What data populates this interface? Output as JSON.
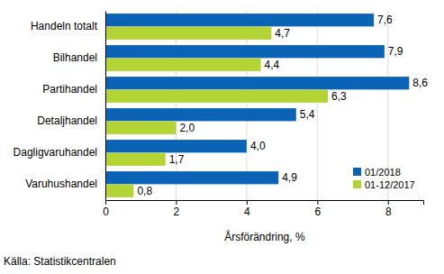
{
  "chart_data": {
    "type": "bar",
    "orientation": "horizontal",
    "categories": [
      "Handeln totalt",
      "Bilhandel",
      "Partihandel",
      "Detaljhandel",
      "Dagligvaruhandel",
      "Varuhushandel"
    ],
    "series": [
      {
        "name": "01/2018",
        "color": "#0b63b5",
        "values": [
          7.6,
          7.9,
          8.6,
          5.4,
          4.0,
          4.9
        ],
        "value_labels": [
          "7,6",
          "7,9",
          "8,6",
          "5,4",
          "4,0",
          "4,9"
        ]
      },
      {
        "name": "01-12/2017",
        "color": "#b4d335",
        "values": [
          4.7,
          4.4,
          6.3,
          2.0,
          1.7,
          0.8
        ],
        "value_labels": [
          "4,7",
          "4,4",
          "6,3",
          "2,0",
          "1,7",
          "0,8"
        ]
      }
    ],
    "xlim": [
      0,
      9
    ],
    "xticks": [
      0,
      2,
      4,
      6,
      8
    ],
    "x_label": "Årsförändring, %",
    "source": "Källa: Statistikcentralen",
    "grid": true,
    "legend": "lower right",
    "data_labels": true
  }
}
